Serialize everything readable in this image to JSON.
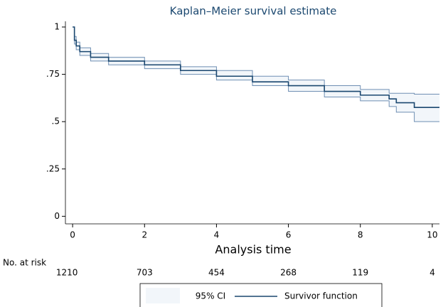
{
  "chart_data": {
    "type": "step",
    "title": "Kaplan–Meier survival estimate",
    "x_label": "Analysis time",
    "x": [
      0,
      0.05,
      0.1,
      0.2,
      0.5,
      1,
      2,
      3,
      4,
      5,
      6,
      7,
      8,
      8.8,
      9,
      9.5,
      10.2
    ],
    "series": [
      {
        "name": "Survivor function",
        "color": "#1a476f",
        "values": [
          1,
          0.93,
          0.9,
          0.87,
          0.84,
          0.82,
          0.8,
          0.77,
          0.74,
          0.71,
          0.69,
          0.66,
          0.64,
          0.62,
          0.6,
          0.575,
          0.575
        ]
      }
    ],
    "ci": {
      "name": "95% CI",
      "color": "#6f8fb3",
      "fill": "#f2f6fa",
      "lower": [
        1,
        0.91,
        0.88,
        0.85,
        0.82,
        0.8,
        0.78,
        0.75,
        0.72,
        0.69,
        0.66,
        0.63,
        0.61,
        0.58,
        0.55,
        0.5,
        0.5
      ],
      "upper": [
        1,
        0.95,
        0.92,
        0.89,
        0.86,
        0.84,
        0.82,
        0.79,
        0.77,
        0.74,
        0.72,
        0.69,
        0.67,
        0.65,
        0.65,
        0.645,
        0.645
      ]
    },
    "xlim": [
      -0.2,
      10.2
    ],
    "ylim": [
      -0.04,
      1.03
    ],
    "xticks": [
      0,
      2,
      4,
      6,
      8,
      10
    ],
    "yticks": [
      1,
      {
        "value": 0.75,
        "label": ".75"
      },
      {
        "value": 0.5,
        "label": ".5"
      },
      {
        "value": 0.25,
        "label": ".25"
      },
      0
    ],
    "risk_table": {
      "label": "No. at risk",
      "values": [
        1210,
        703,
        454,
        268,
        119,
        4
      ]
    }
  }
}
